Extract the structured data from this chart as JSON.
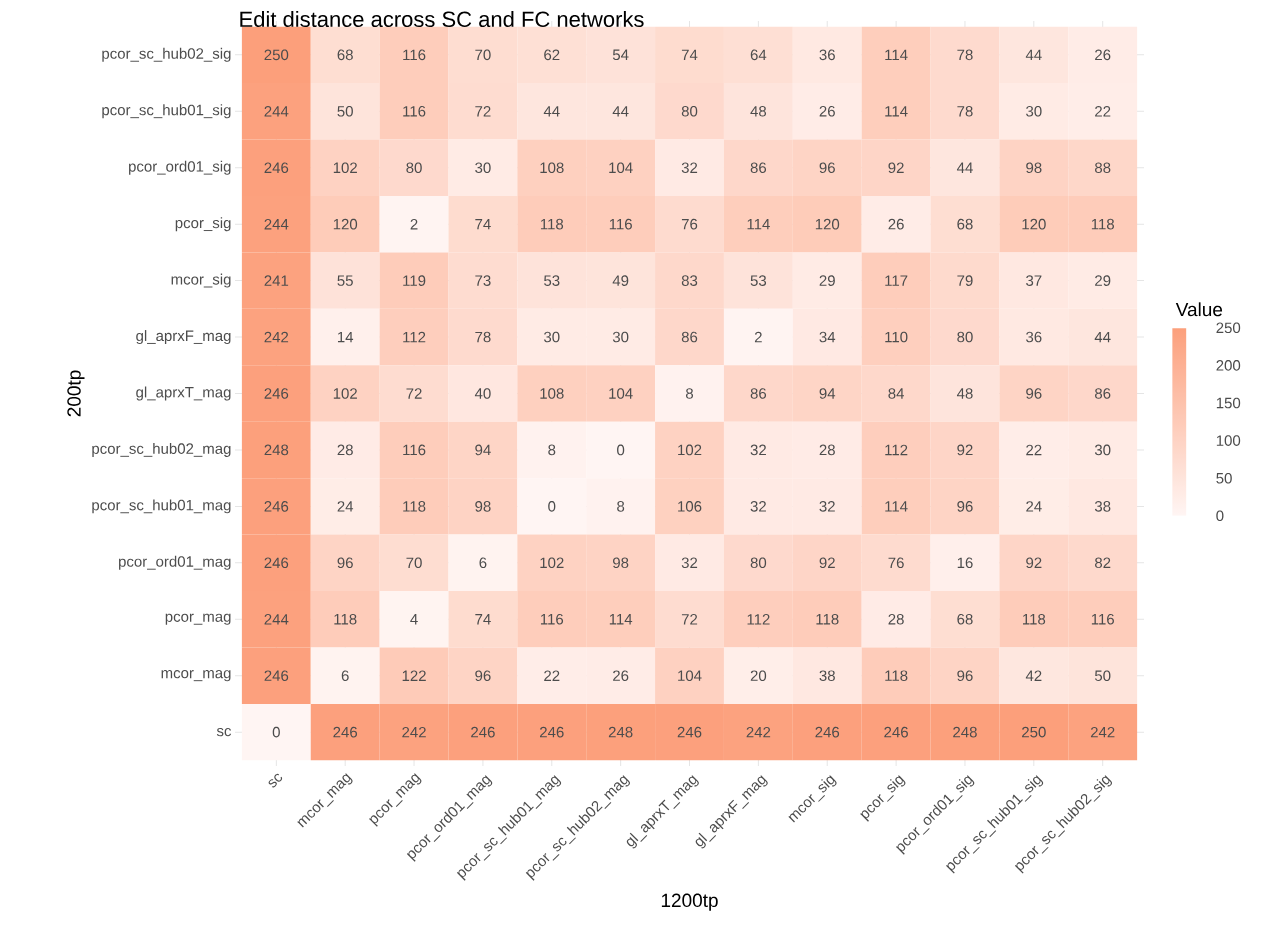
{
  "chart_data": {
    "type": "heatmap",
    "title": "Edit distance across SC and FC networks",
    "xlabel": "1200tp",
    "ylabel": "200tp",
    "clabel": "Value",
    "categories": [
      "sc",
      "mcor_mag",
      "pcor_mag",
      "pcor_ord01_mag",
      "pcor_sc_hub01_mag",
      "pcor_sc_hub02_mag",
      "gl_aprxT_mag",
      "gl_aprxF_mag",
      "mcor_sig",
      "pcor_sig",
      "pcor_ord01_sig",
      "pcor_sc_hub01_sig",
      "pcor_sc_hub02_sig"
    ],
    "y_categories": [
      "pcor_sc_hub02_sig",
      "pcor_sc_hub01_sig",
      "pcor_ord01_sig",
      "pcor_sig",
      "mcor_sig",
      "gl_aprxF_mag",
      "gl_aprxT_mag",
      "pcor_sc_hub02_mag",
      "pcor_sc_hub01_mag",
      "pcor_ord01_mag",
      "pcor_mag",
      "mcor_mag",
      "sc"
    ],
    "cells": [
      [
        250,
        68,
        116,
        70,
        62,
        54,
        74,
        64,
        36,
        114,
        78,
        44,
        26
      ],
      [
        244,
        50,
        116,
        72,
        44,
        44,
        80,
        48,
        26,
        114,
        78,
        30,
        22
      ],
      [
        246,
        102,
        80,
        30,
        108,
        104,
        32,
        86,
        96,
        92,
        44,
        98,
        88
      ],
      [
        244,
        120,
        2,
        74,
        118,
        116,
        76,
        114,
        120,
        26,
        68,
        120,
        118
      ],
      [
        241,
        55,
        119,
        73,
        53,
        49,
        83,
        53,
        29,
        117,
        79,
        37,
        29
      ],
      [
        242,
        14,
        112,
        78,
        30,
        30,
        86,
        2,
        34,
        110,
        80,
        36,
        44
      ],
      [
        246,
        102,
        72,
        40,
        108,
        104,
        8,
        86,
        94,
        84,
        48,
        96,
        86
      ],
      [
        248,
        28,
        116,
        94,
        8,
        0,
        102,
        32,
        28,
        112,
        92,
        22,
        30
      ],
      [
        246,
        24,
        118,
        98,
        0,
        8,
        106,
        32,
        32,
        114,
        96,
        24,
        38
      ],
      [
        246,
        96,
        70,
        6,
        102,
        98,
        32,
        80,
        92,
        76,
        16,
        92,
        82
      ],
      [
        244,
        118,
        4,
        74,
        116,
        114,
        72,
        112,
        118,
        28,
        68,
        118,
        116
      ],
      [
        246,
        6,
        122,
        96,
        22,
        26,
        104,
        20,
        38,
        118,
        96,
        42,
        50
      ],
      [
        0,
        246,
        242,
        246,
        246,
        248,
        246,
        242,
        246,
        246,
        248,
        250,
        242
      ]
    ],
    "data_labels": true,
    "grid": true,
    "colors": [
      "#fff5f3",
      "#fc9f7b"
    ],
    "clim": [
      0,
      250
    ],
    "cticks": [
      0,
      50,
      100,
      150,
      200,
      250
    ]
  }
}
